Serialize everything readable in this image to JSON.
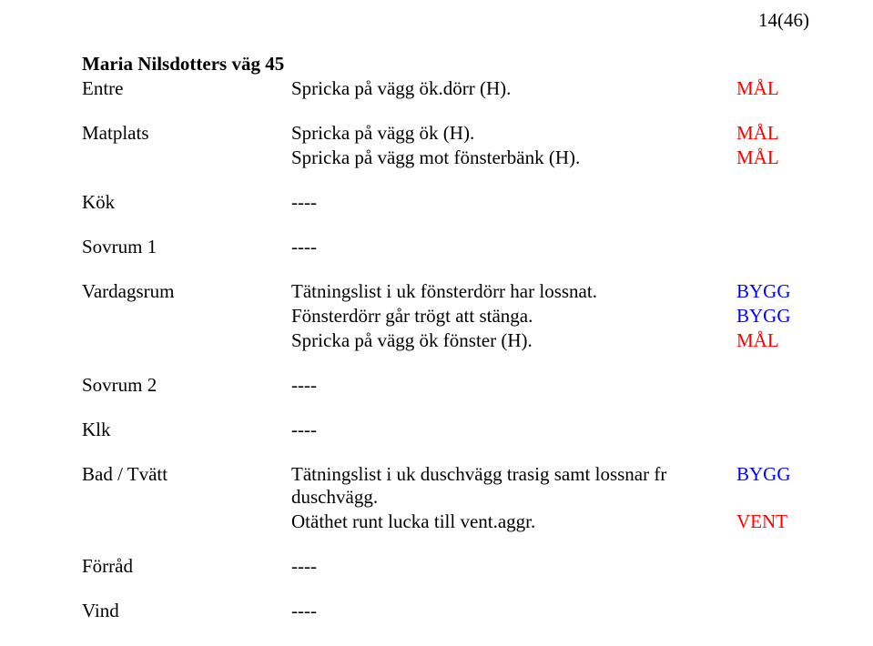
{
  "colors": {
    "text": "#000000",
    "red": "#ff0000",
    "blue": "#0000ff",
    "background": "#ffffff"
  },
  "typography": {
    "family": "Times New Roman",
    "size_pt": 16,
    "title_weight": "bold"
  },
  "page_number": "14(46)",
  "title": "Maria Nilsdotters väg 45",
  "tag_text": {
    "mal": "MÅL",
    "bygg": "BYGG",
    "vent": "VENT"
  },
  "rooms": {
    "entre": {
      "label": "Entre",
      "lines": [
        {
          "text": "Spricka på vägg ök.dörr (H).",
          "tag": "mal",
          "tag_color": "red"
        }
      ]
    },
    "matplats": {
      "label": "Matplats",
      "lines": [
        {
          "text": "Spricka på vägg ök (H).",
          "tag": "mal",
          "tag_color": "red"
        },
        {
          "text": "Spricka på vägg mot fönsterbänk (H).",
          "tag": "mal",
          "tag_color": "red"
        }
      ]
    },
    "kok": {
      "label": "Kök",
      "lines": [
        {
          "text": "----",
          "tag": null
        }
      ]
    },
    "sovrum1": {
      "label": "Sovrum 1",
      "lines": [
        {
          "text": "----",
          "tag": null
        }
      ]
    },
    "vardagsrum": {
      "label": "Vardagsrum",
      "lines": [
        {
          "text": "Tätningslist i uk fönsterdörr har lossnat.",
          "tag": "bygg",
          "tag_color": "blue"
        },
        {
          "text": "Fönsterdörr går trögt att stänga.",
          "tag": "bygg",
          "tag_color": "blue"
        },
        {
          "text": "Spricka på vägg ök fönster (H).",
          "tag": "mal",
          "tag_color": "red"
        }
      ]
    },
    "sovrum2": {
      "label": "Sovrum 2",
      "lines": [
        {
          "text": "----",
          "tag": null
        }
      ]
    },
    "klk": {
      "label": "Klk",
      "lines": [
        {
          "text": "----",
          "tag": null
        }
      ]
    },
    "bad_tvatt": {
      "label": "Bad / Tvätt",
      "lines": [
        {
          "text": "Tätningslist i uk duschvägg trasig samt lossnar fr duschvägg.",
          "tag": "bygg",
          "tag_color": "blue"
        },
        {
          "text": "Otäthet runt lucka till vent.aggr.",
          "tag": "vent",
          "tag_color": "red"
        }
      ]
    },
    "forrad": {
      "label": "Förråd",
      "lines": [
        {
          "text": "----",
          "tag": null
        }
      ]
    },
    "vind": {
      "label": "Vind",
      "lines": [
        {
          "text": "----",
          "tag": null
        }
      ]
    }
  }
}
